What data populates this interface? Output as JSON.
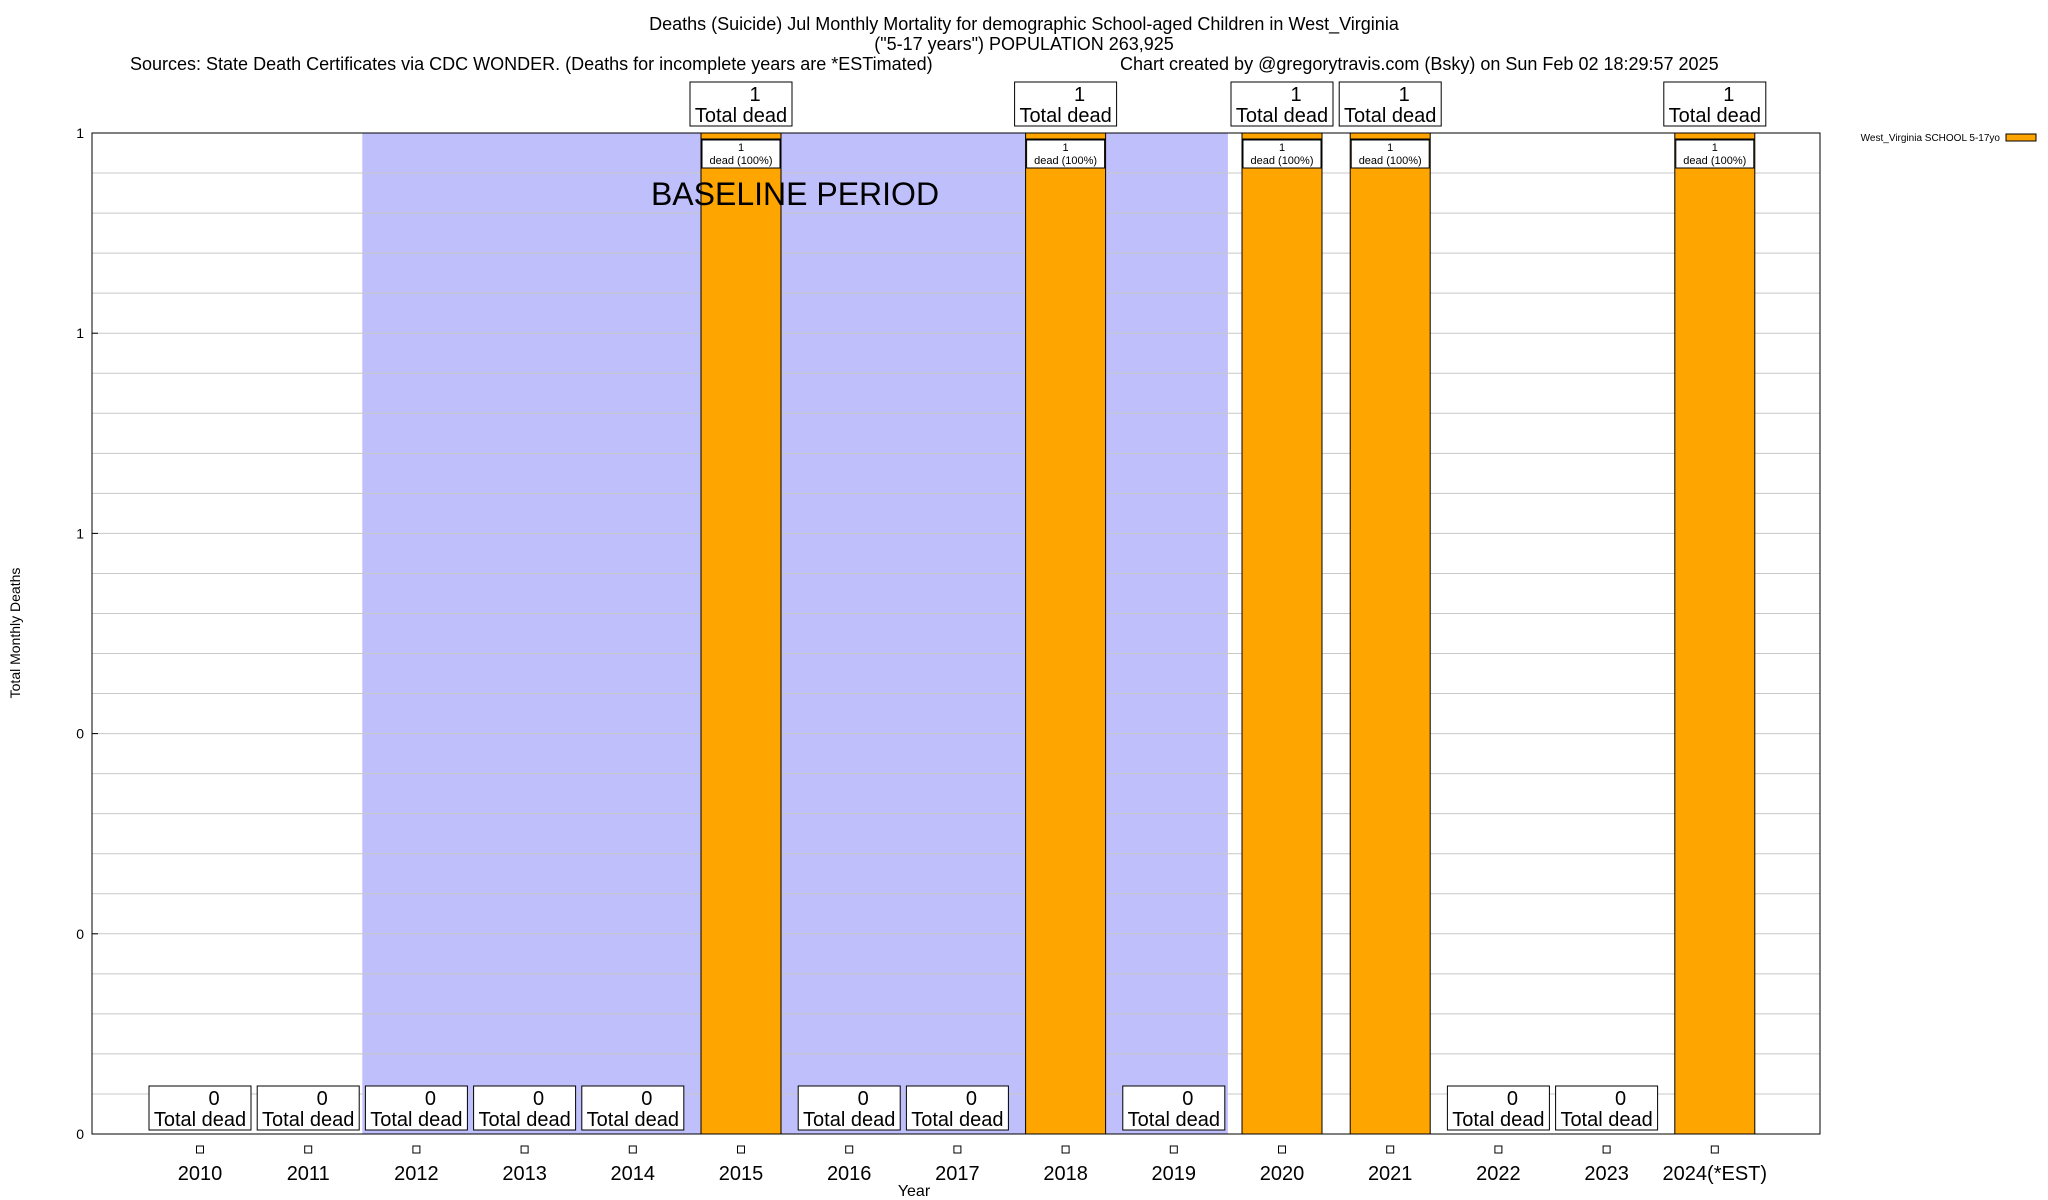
{
  "header": {
    "title_line1": "Deaths (Suicide) Jul Monthly Mortality for demographic School-aged Children in West_Virginia",
    "title_line2": "(\"5-17 years\") POPULATION 263,925",
    "sources": "Sources: State Death Certificates via CDC WONDER. (Deaths for incomplete years are *ESTimated)",
    "credit": "Chart created by @gregorytravis.com (Bsky) on Sun Feb 02 18:29:57 2025"
  },
  "chart_data": {
    "type": "bar",
    "xlabel": "Year",
    "ylabel": "Total Monthly Deaths",
    "ylim": [
      0,
      1
    ],
    "y_tick_labels": [
      "0",
      "0",
      "0",
      "1",
      "1",
      "1"
    ],
    "grid": true,
    "legend_position": "top-right",
    "categories": [
      "2010",
      "2011",
      "2012",
      "2013",
      "2014",
      "2015",
      "2016",
      "2017",
      "2018",
      "2019",
      "2020",
      "2021",
      "2022",
      "2023",
      "2024(*EST)"
    ],
    "series": [
      {
        "name": "West_Virginia SCHOOL 5-17yo",
        "color": "#ffa500",
        "values": [
          0,
          0,
          0,
          0,
          0,
          1,
          0,
          0,
          1,
          0,
          1,
          1,
          0,
          0,
          1
        ]
      }
    ],
    "total_labels": {
      "suffix": "Total dead",
      "values": [
        "0",
        "0",
        "0",
        "0",
        "0",
        "1",
        "0",
        "0",
        "1",
        "0",
        "1",
        "1",
        "0",
        "0",
        "1"
      ]
    },
    "segment_label_line1": "1",
    "segment_label_line2": "dead (100%)",
    "baseline_label": "BASELINE PERIOD",
    "baseline_years": [
      "2012",
      "2013",
      "2014",
      "2015",
      "2016",
      "2017",
      "2018",
      "2019"
    ],
    "baseline_color": "#bfbffb"
  }
}
